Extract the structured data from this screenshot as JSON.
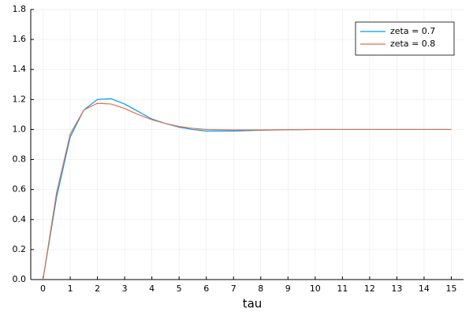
{
  "chart_data": {
    "type": "line",
    "xlabel": "tau",
    "x": [
      0,
      0.5,
      1,
      1.5,
      2,
      2.5,
      3,
      3.5,
      4,
      4.5,
      5,
      5.5,
      6,
      7,
      8,
      9,
      10,
      11,
      12,
      13,
      14,
      15
    ],
    "series": [
      {
        "name": "zeta = 0.7",
        "color": "#009af9",
        "values": [
          0,
          0.55,
          0.95,
          1.13,
          1.2,
          1.205,
          1.17,
          1.12,
          1.07,
          1.04,
          1.015,
          1.0,
          0.99,
          0.99,
          0.995,
          0.998,
          1.0,
          1.0,
          1.0,
          1.0,
          1.0,
          1.0
        ]
      },
      {
        "name": "zeta = 0.8",
        "color": "#e26f46",
        "values": [
          0,
          0.58,
          0.97,
          1.13,
          1.175,
          1.17,
          1.14,
          1.1,
          1.065,
          1.04,
          1.02,
          1.008,
          1.0,
          0.997,
          0.997,
          0.999,
          1.0,
          1.0,
          1.0,
          1.0,
          1.0,
          1.0
        ]
      }
    ],
    "xlim": [
      -0.45,
      15.45
    ],
    "xticks": [
      0,
      1,
      2,
      3,
      4,
      5,
      6,
      7,
      8,
      9,
      10,
      11,
      12,
      13,
      14,
      15
    ],
    "ylim": [
      0,
      1.8
    ],
    "yticks": [
      {
        "value": 0,
        "label": "0.0"
      },
      {
        "value": 0.2,
        "label": "0.2"
      },
      {
        "value": 0.4,
        "label": "0.4"
      },
      {
        "value": 0.6,
        "label": "0.6"
      },
      {
        "value": 0.8,
        "label": "0.8"
      },
      {
        "value": 1.0,
        "label": "1.0"
      },
      {
        "value": 1.2,
        "label": "1.2"
      },
      {
        "value": 1.4,
        "label": "1.4"
      },
      {
        "value": 1.6,
        "label": "1.6"
      },
      {
        "value": 1.8,
        "label": "1.8"
      }
    ],
    "grid": true,
    "legend": "top-right"
  }
}
